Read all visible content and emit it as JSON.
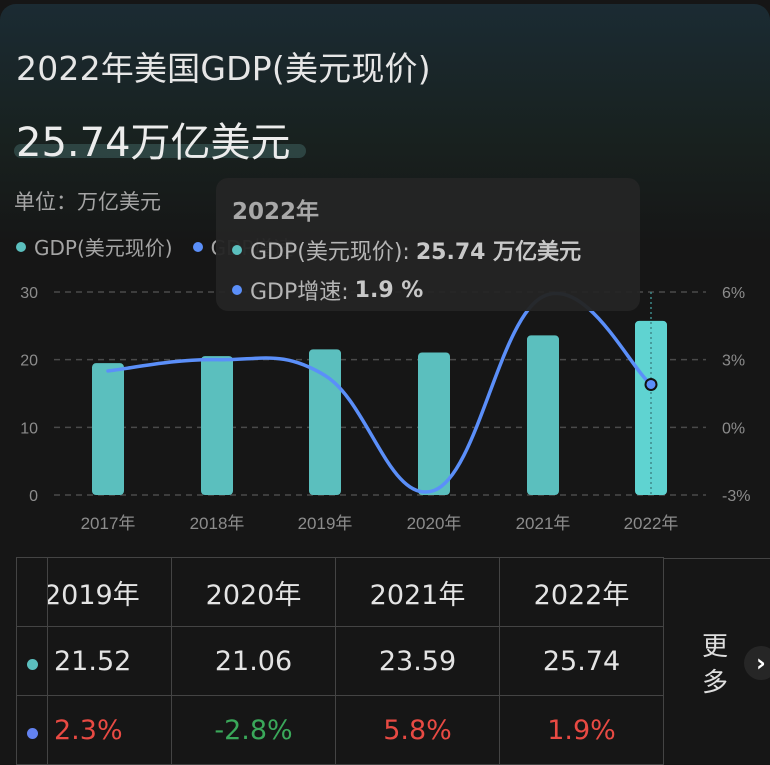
{
  "header": {
    "title": "2022年美国GDP(美元现价)",
    "value": "25.74万亿美元",
    "unit_label": "单位：万亿美元"
  },
  "legend": [
    {
      "label": "GDP(美元现价)",
      "color": "#5bbfbe"
    },
    {
      "label": "GDP增速",
      "color": "#5b8ff9"
    }
  ],
  "tooltip": {
    "title": "2022年",
    "rows": [
      {
        "label": "GDP(美元现价):",
        "value": "25.74 万亿美元",
        "color": "#5bbfbe"
      },
      {
        "label": "GDP增速:",
        "value": "1.9 %",
        "color": "#5b8ff9"
      }
    ]
  },
  "chart_data": {
    "type": "bar+line",
    "title": "2022年美国GDP(美元现价)",
    "categories": [
      "2017年",
      "2018年",
      "2019年",
      "2020年",
      "2021年",
      "2022年"
    ],
    "series": [
      {
        "name": "GDP(美元现价)",
        "type": "bar",
        "axis": "left",
        "unit": "万亿美元",
        "color": "#5bbfbe",
        "values": [
          19.48,
          20.53,
          21.52,
          21.06,
          23.59,
          25.74
        ]
      },
      {
        "name": "GDP增速",
        "type": "line",
        "axis": "right",
        "unit": "%",
        "color": "#5b8ff9",
        "values": [
          2.5,
          3.0,
          2.3,
          -2.8,
          5.8,
          1.9
        ]
      }
    ],
    "left_axis": {
      "ticks": [
        "0",
        "10",
        "20",
        "30"
      ],
      "range": [
        0,
        30
      ]
    },
    "right_axis": {
      "ticks": [
        "-3%",
        "0%",
        "3%",
        "6%"
      ],
      "range": [
        -3,
        6
      ]
    },
    "grid": "dashed horizontal",
    "legend_position": "top-left",
    "highlighted_category": "2022年"
  },
  "table": {
    "headers": [
      "2019年",
      "2020年",
      "2021年",
      "2022年"
    ],
    "rows": [
      {
        "dot_color": "#5bbfbe",
        "values": [
          "21.52",
          "21.06",
          "23.59",
          "25.74"
        ],
        "classes": [
          "",
          "",
          "",
          ""
        ]
      },
      {
        "dot_color": "#6382f0",
        "values": [
          "2.3%",
          "-2.8%",
          "5.8%",
          "1.9%"
        ],
        "classes": [
          "red",
          "green",
          "red",
          "red"
        ]
      }
    ],
    "more_label": "更多",
    "more_icon": "chevron-right-icon"
  }
}
